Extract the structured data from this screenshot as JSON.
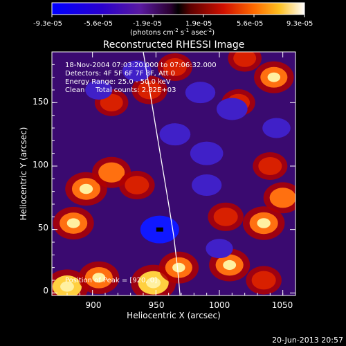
{
  "chart_data": {
    "type": "heatmap",
    "title": "Reconstructed RHESSI Image",
    "xlabel": "Heliocentric X (arcsec)",
    "ylabel": "Heliocentric Y (arcsec)",
    "xlim": [
      868,
      1060
    ],
    "ylim": [
      -2,
      190
    ],
    "x_ticks": [
      "900",
      "950",
      "1000",
      "1050"
    ],
    "y_ticks": [
      "0",
      "50",
      "100",
      "150"
    ],
    "colorbar": {
      "min": -9.3e-05,
      "max": 9.3e-05,
      "tick_labels": [
        "-9.3e-05",
        "-5.6e-05",
        "-1.9e-05",
        "1.9e-05",
        "5.6e-05",
        "9.3e-05"
      ],
      "unit_label": "(photons cm",
      "unit_sup1": "-2",
      "unit_mid": " s",
      "unit_sup2": "-1",
      "unit_mid2": " asec",
      "unit_sup3": "-2",
      "unit_end": ")"
    },
    "info_lines": [
      "18-Nov-2004 07:03:20.000 to 07:06:32.000",
      "Detectors: 4F 5F 6F 7F 8F, Att 0",
      "Energy Range: 25.0 - 50.0 keV",
      "Clean     Total counts: 2.82E+03"
    ],
    "peak_label": "Position of Peak = [920, 0]",
    "bright_blobs": [
      {
        "x": 880,
        "y": 5,
        "v": 0.9
      },
      {
        "x": 905,
        "y": 12,
        "v": 0.8
      },
      {
        "x": 948,
        "y": 8,
        "v": 1.0
      },
      {
        "x": 968,
        "y": 20,
        "v": 0.75
      },
      {
        "x": 1008,
        "y": 22,
        "v": 0.8
      },
      {
        "x": 1035,
        "y": 10,
        "v": 0.55
      },
      {
        "x": 885,
        "y": 55,
        "v": 0.8
      },
      {
        "x": 895,
        "y": 82,
        "v": 0.85
      },
      {
        "x": 915,
        "y": 95,
        "v": 0.7
      },
      {
        "x": 935,
        "y": 85,
        "v": 0.55
      },
      {
        "x": 1005,
        "y": 60,
        "v": 0.55
      },
      {
        "x": 1035,
        "y": 55,
        "v": 0.85
      },
      {
        "x": 1050,
        "y": 75,
        "v": 0.7
      },
      {
        "x": 1040,
        "y": 100,
        "v": 0.5
      },
      {
        "x": 915,
        "y": 150,
        "v": 0.45
      },
      {
        "x": 945,
        "y": 160,
        "v": 0.55
      },
      {
        "x": 965,
        "y": 178,
        "v": 0.5
      },
      {
        "x": 1015,
        "y": 150,
        "v": 0.45
      },
      {
        "x": 1043,
        "y": 170,
        "v": 0.75
      },
      {
        "x": 1020,
        "y": 185,
        "v": 0.45
      }
    ],
    "dark_blobs": [
      {
        "x": 953,
        "y": 50,
        "v": 1.0
      },
      {
        "x": 990,
        "y": 110,
        "v": 0.7
      },
      {
        "x": 965,
        "y": 125,
        "v": 0.6
      },
      {
        "x": 1010,
        "y": 145,
        "v": 0.6
      },
      {
        "x": 985,
        "y": 158,
        "v": 0.55
      },
      {
        "x": 935,
        "y": 175,
        "v": 0.5
      },
      {
        "x": 990,
        "y": 85,
        "v": 0.55
      },
      {
        "x": 1045,
        "y": 130,
        "v": 0.45
      },
      {
        "x": 905,
        "y": 160,
        "v": 0.4
      },
      {
        "x": 1000,
        "y": 35,
        "v": 0.4
      }
    ],
    "limb_curve": [
      {
        "x": 940,
        "y": 190
      },
      {
        "x": 945,
        "y": 160
      },
      {
        "x": 950,
        "y": 130
      },
      {
        "x": 955,
        "y": 100
      },
      {
        "x": 960,
        "y": 70
      },
      {
        "x": 964,
        "y": 45
      },
      {
        "x": 967,
        "y": 20
      },
      {
        "x": 969,
        "y": -2
      }
    ]
  },
  "footer": {
    "date_stamp": "20-Jun-2013 20:57"
  },
  "colors": {
    "background": "#000000",
    "text": "#ffffff",
    "limb": "#ffffff"
  }
}
